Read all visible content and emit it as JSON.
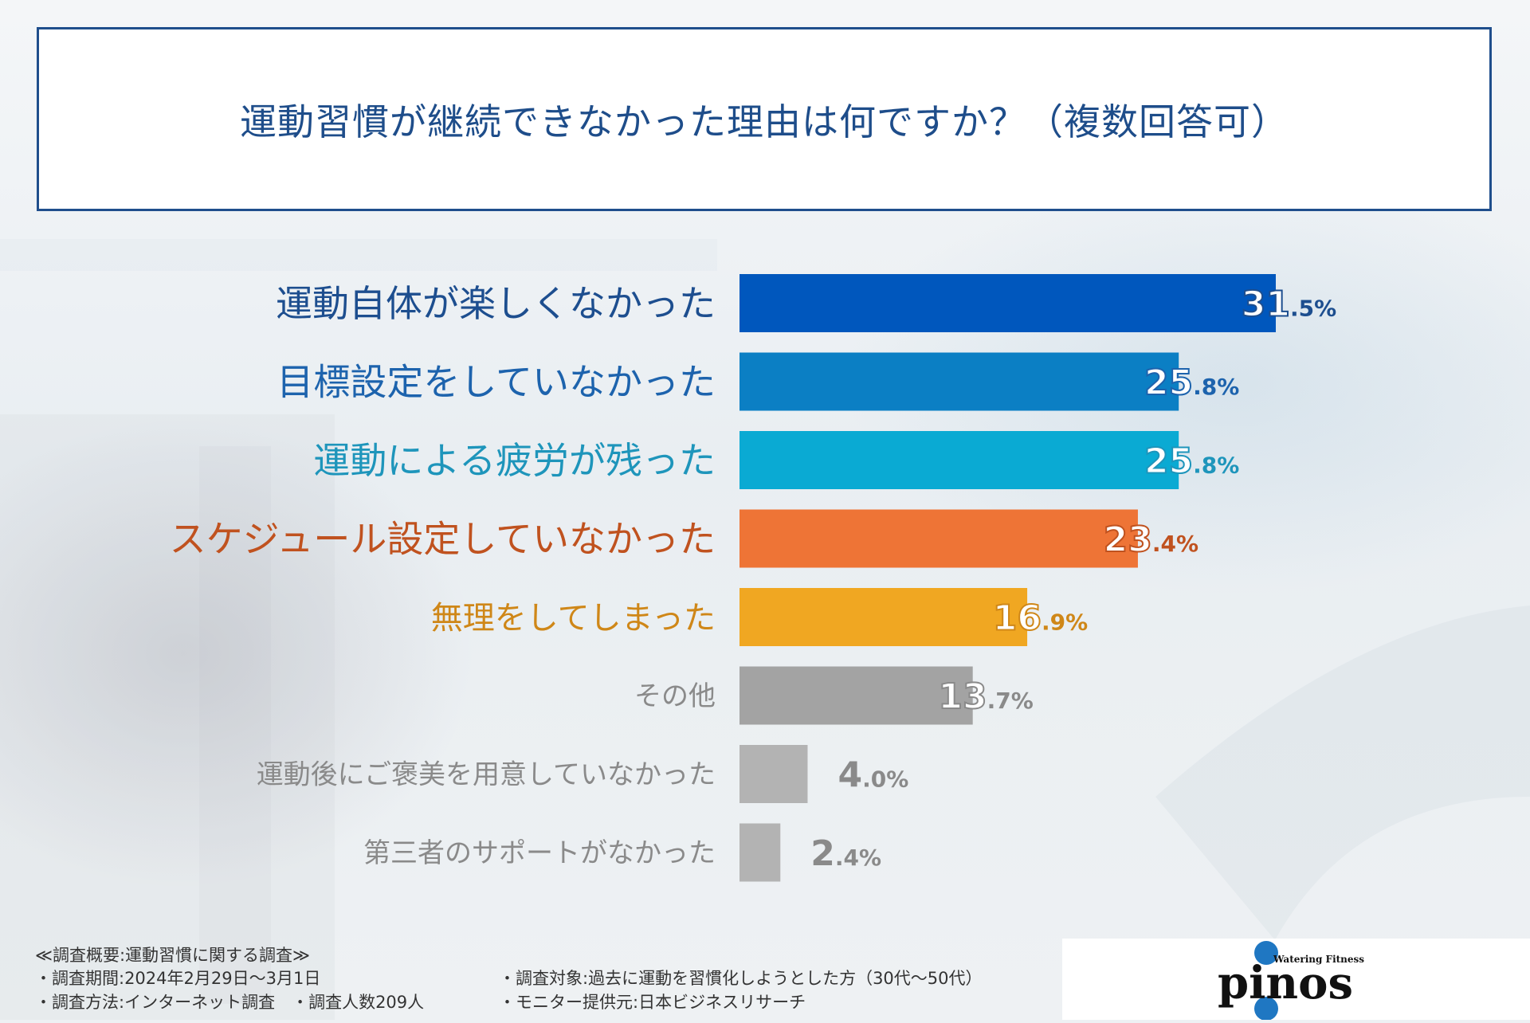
{
  "title": "運動習慣が継続できなかった理由は何ですか？（複数回答可）",
  "chart_data": {
    "type": "bar",
    "orientation": "horizontal",
    "title": "運動習慣が継続できなかった理由は何ですか？（複数回答可）",
    "categories": [
      "運動自体が楽しくなかった",
      "目標設定をしていなかった",
      "運動による疲労が残った",
      "スケジュール設定していなかった",
      "無理をしてしまった",
      "その他",
      "運動後にご褒美を用意していなかった",
      "第三者のサポートがなかった"
    ],
    "values": [
      31.5,
      25.8,
      25.8,
      23.4,
      16.9,
      13.7,
      4.0,
      2.4
    ],
    "value_labels": [
      {
        "int": "31",
        "dec": ".5%"
      },
      {
        "int": "25",
        "dec": ".8%"
      },
      {
        "int": "25",
        "dec": ".8%"
      },
      {
        "int": "23",
        "dec": ".4%"
      },
      {
        "int": "16",
        "dec": ".9%"
      },
      {
        "int": "13",
        "dec": ".7%"
      },
      {
        "int": "4",
        "dec": ".0%"
      },
      {
        "int": "2",
        "dec": ".4%"
      }
    ],
    "colors": [
      "#0057bd",
      "#0b7fc4",
      "#0aaad3",
      "#ee7436",
      "#f0a722",
      "#a3a3a3",
      "#b3b3b3",
      "#b3b3b3"
    ],
    "label_colors": [
      "#1d4e8f",
      "#1d63ad",
      "#1e95bb",
      "#c0521f",
      "#cf8718",
      "#8a8a8a",
      "#8a8a8a",
      "#8a8a8a"
    ],
    "unit": "%",
    "xlim": [
      0,
      31.5
    ]
  },
  "footer": {
    "heading": "≪調査概要:運動習慣に関する調査≫",
    "period": "・調査期間:2024年2月29日～3月1日",
    "method": "・調査方法:インターネット調査　・調査人数209人",
    "target": "・調査対象:過去に運動を習慣化しようとした方（30代～50代）",
    "provider": "・モニター提供元:日本ビジネスリサーチ"
  },
  "logo": {
    "brand": "pinos",
    "tagline": "Watering Fitness"
  }
}
